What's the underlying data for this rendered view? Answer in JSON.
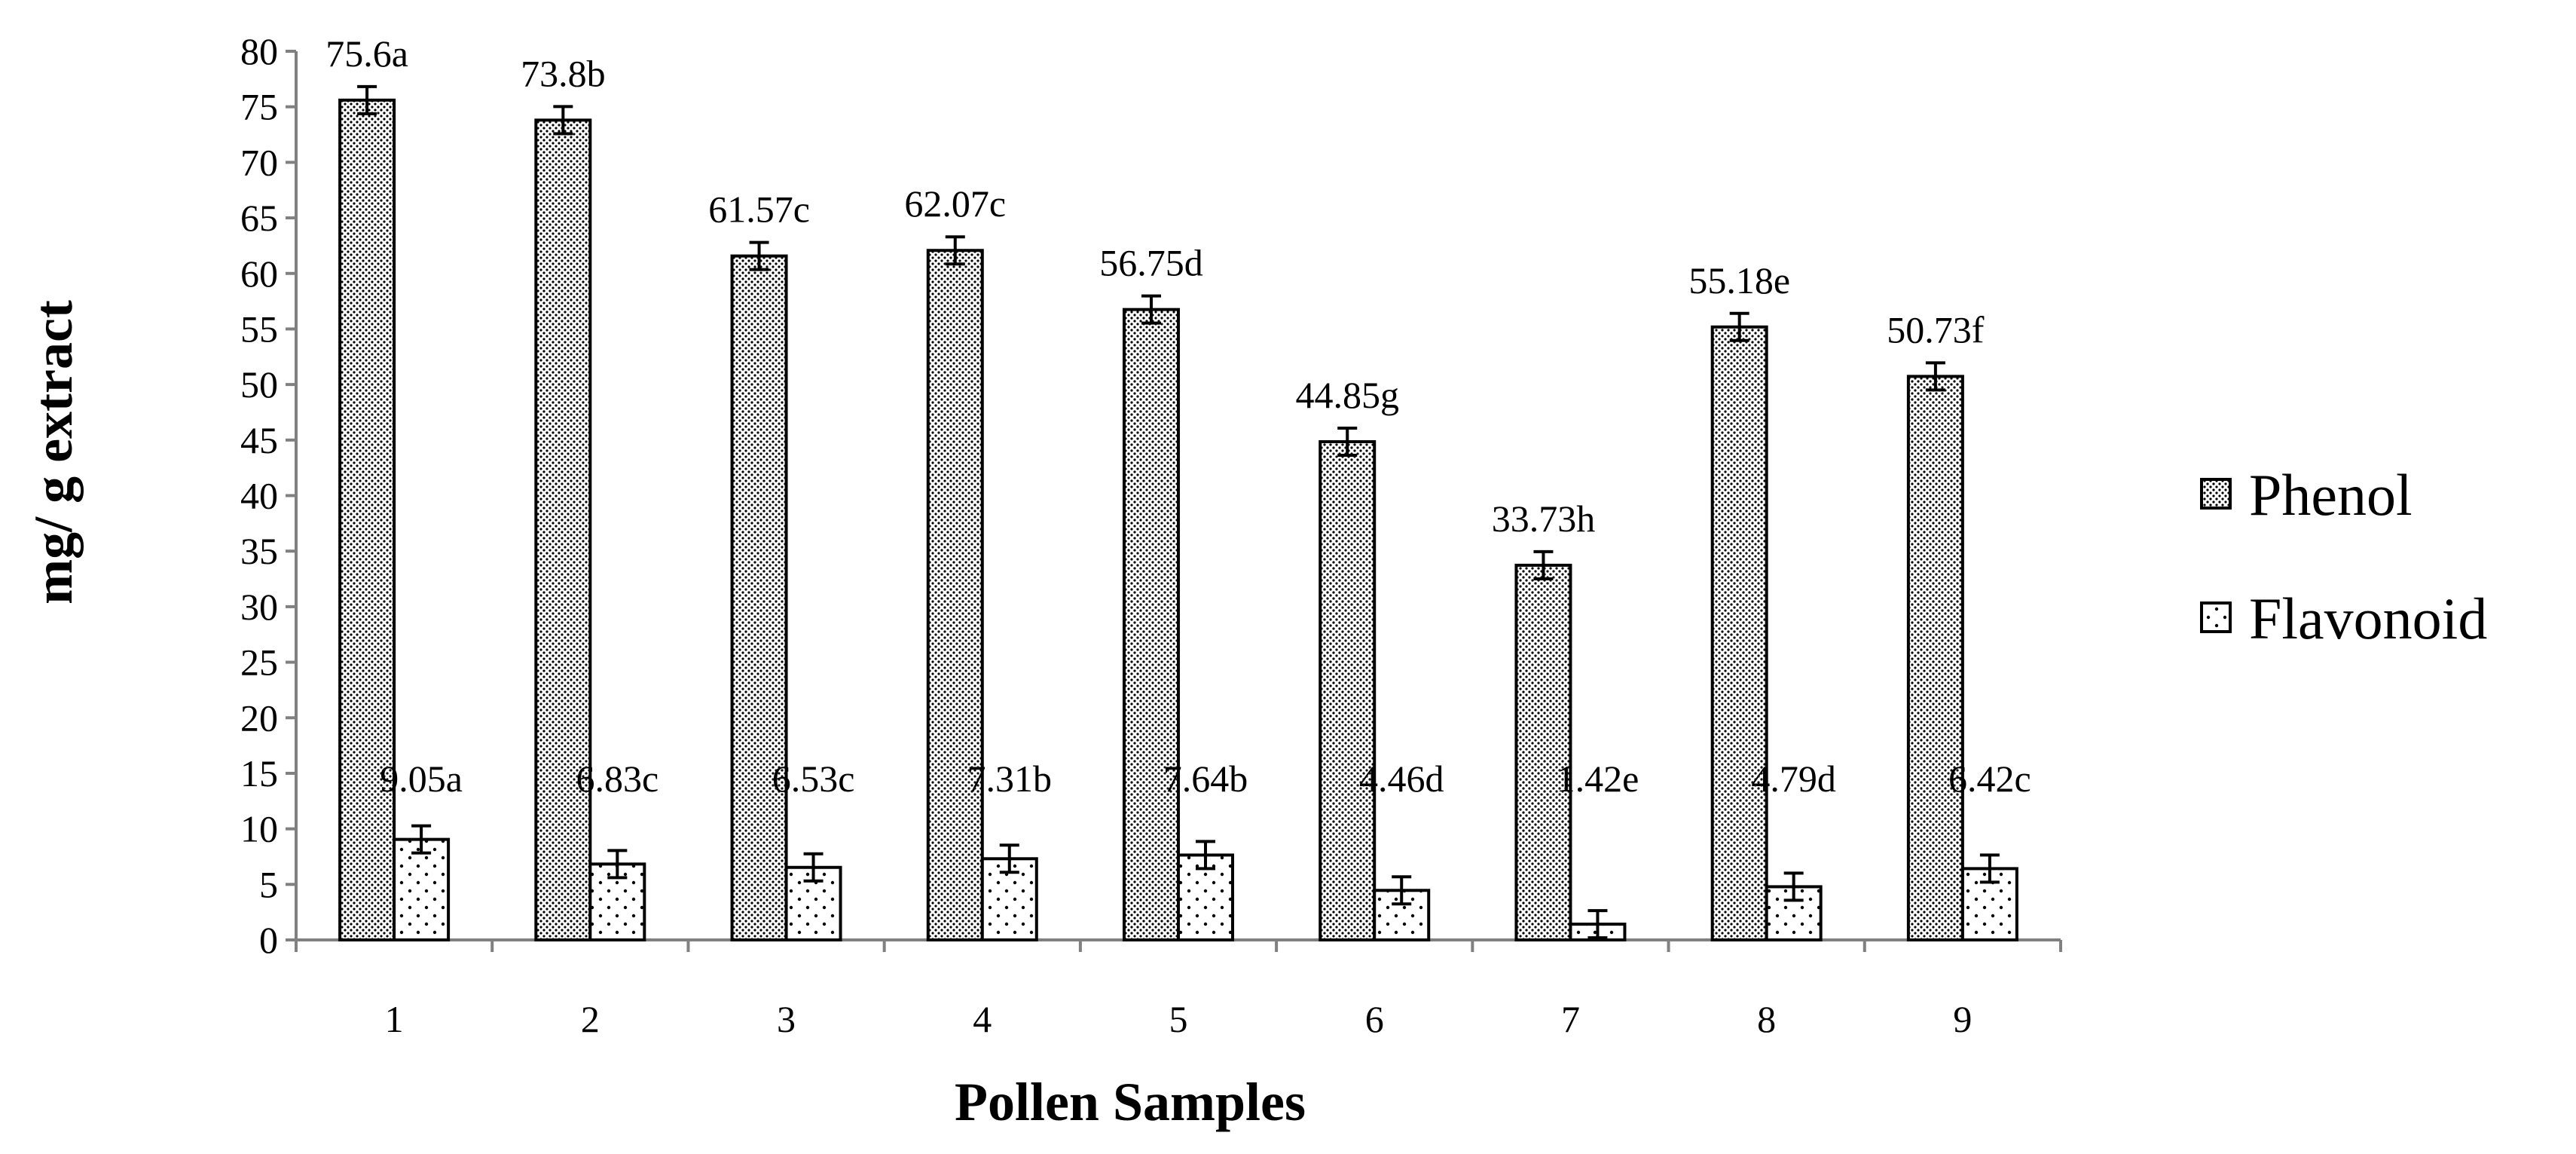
{
  "chart_data": {
    "type": "bar",
    "xlabel": "Pollen Samples",
    "ylabel": "mg/ g extract",
    "ylim": [
      0,
      80
    ],
    "ytick_step": 5,
    "categories": [
      "1",
      "2",
      "3",
      "4",
      "5",
      "6",
      "7",
      "8",
      "9"
    ],
    "legend_position": "right",
    "grid": false,
    "series": [
      {
        "name": "Phenol",
        "pattern": "dense-dots",
        "values": [
          75.6,
          73.8,
          61.57,
          62.07,
          56.75,
          44.85,
          33.73,
          55.18,
          50.73
        ],
        "labels": [
          "75.6a",
          "73.8b",
          "61.57c",
          "62.07c",
          "56.75d",
          "44.85g",
          "33.73h",
          "55.18e",
          "50.73f"
        ]
      },
      {
        "name": "Flavonoid",
        "pattern": "sparse-dots",
        "values": [
          9.05,
          6.83,
          6.53,
          7.31,
          7.64,
          4.46,
          1.42,
          4.79,
          6.42
        ],
        "labels": [
          "9.05a",
          "6.83c",
          "6.53c",
          "7.31b",
          "7.64b",
          "4.46d",
          "1.42e",
          "4.79d",
          "6.42c"
        ]
      }
    ]
  }
}
